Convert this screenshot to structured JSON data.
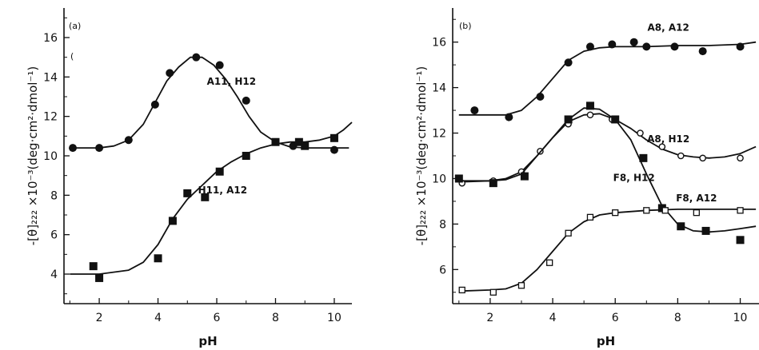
{
  "chart_data": [
    {
      "type": "scatter",
      "panel_label": "(a)",
      "xlabel": "pH",
      "ylabel": "-[θ]₂₂₂ ×10⁻³(deg·cm²·dmol⁻¹)",
      "xlim": [
        0.8,
        10.6
      ],
      "ylim": [
        2.5,
        17.5
      ],
      "xticks": [
        2,
        4,
        6,
        8,
        10
      ],
      "yticks": [
        4,
        6,
        8,
        10,
        12,
        14,
        16
      ],
      "grid": false,
      "stray_mark": "(",
      "series": [
        {
          "name": "A11, H12",
          "marker": "filled-circle",
          "x": [
            1.1,
            2.0,
            3.0,
            3.9,
            4.4,
            5.3,
            6.1,
            7.0,
            8.6,
            10.0
          ],
          "y": [
            10.4,
            10.4,
            10.8,
            12.6,
            14.2,
            15.0,
            14.6,
            12.8,
            10.5,
            10.3
          ],
          "curve": [
            [
              1.0,
              10.4
            ],
            [
              1.5,
              10.4
            ],
            [
              2.0,
              10.4
            ],
            [
              2.5,
              10.5
            ],
            [
              3.0,
              10.8
            ],
            [
              3.5,
              11.6
            ],
            [
              3.9,
              12.7
            ],
            [
              4.3,
              13.8
            ],
            [
              4.7,
              14.5
            ],
            [
              5.1,
              15.0
            ],
            [
              5.5,
              15.0
            ],
            [
              5.9,
              14.6
            ],
            [
              6.3,
              13.9
            ],
            [
              6.7,
              13.0
            ],
            [
              7.1,
              12.0
            ],
            [
              7.5,
              11.2
            ],
            [
              8.0,
              10.7
            ],
            [
              8.5,
              10.45
            ],
            [
              9.0,
              10.4
            ],
            [
              10.0,
              10.4
            ],
            [
              10.5,
              10.4
            ]
          ]
        },
        {
          "name": "H11, A12",
          "marker": "filled-square",
          "x": [
            1.8,
            2.0,
            4.0,
            4.5,
            5.0,
            5.6,
            6.1,
            7.0,
            8.0,
            8.8,
            9.0,
            10.0
          ],
          "y": [
            4.4,
            3.8,
            4.8,
            6.7,
            8.1,
            7.9,
            9.2,
            10.0,
            10.7,
            10.7,
            10.5,
            10.9
          ],
          "curve": [
            [
              1.0,
              4.0
            ],
            [
              2.0,
              4.0
            ],
            [
              3.0,
              4.2
            ],
            [
              3.5,
              4.6
            ],
            [
              4.0,
              5.5
            ],
            [
              4.5,
              6.8
            ],
            [
              5.0,
              7.8
            ],
            [
              5.5,
              8.5
            ],
            [
              6.0,
              9.2
            ],
            [
              6.5,
              9.7
            ],
            [
              7.0,
              10.1
            ],
            [
              7.5,
              10.4
            ],
            [
              8.0,
              10.6
            ],
            [
              8.5,
              10.7
            ],
            [
              9.0,
              10.7
            ],
            [
              9.5,
              10.8
            ],
            [
              10.0,
              11.0
            ],
            [
              10.3,
              11.3
            ],
            [
              10.6,
              11.7
            ]
          ]
        }
      ],
      "annotations": [
        {
          "text": "A11, H12",
          "x": 6.5,
          "y": 13.6
        },
        {
          "text": "H11, A12",
          "x": 6.2,
          "y": 8.1
        }
      ]
    },
    {
      "type": "scatter",
      "panel_label": "(b)",
      "xlabel": "pH",
      "ylabel": "-[θ]₂₂₂ ×10⁻³(deg·cm²·dmol⁻¹)",
      "xlim": [
        0.8,
        10.6
      ],
      "ylim": [
        4.5,
        17.5
      ],
      "xticks": [
        2,
        4,
        6,
        8,
        10
      ],
      "yticks": [
        6,
        8,
        10,
        12,
        14,
        16
      ],
      "grid": false,
      "series": [
        {
          "name": "A8, A12",
          "marker": "filled-circle",
          "x": [
            1.5,
            2.6,
            3.6,
            4.5,
            5.2,
            5.9,
            6.6,
            7.0,
            7.9,
            8.8,
            10.0
          ],
          "y": [
            13.0,
            12.7,
            13.6,
            15.1,
            15.8,
            15.9,
            16.0,
            15.8,
            15.8,
            15.6,
            15.8
          ],
          "curve": [
            [
              1.0,
              12.8
            ],
            [
              2.0,
              12.8
            ],
            [
              2.5,
              12.8
            ],
            [
              3.0,
              13.0
            ],
            [
              3.5,
              13.6
            ],
            [
              4.0,
              14.4
            ],
            [
              4.5,
              15.2
            ],
            [
              5.0,
              15.6
            ],
            [
              5.5,
              15.75
            ],
            [
              6.0,
              15.8
            ],
            [
              7.0,
              15.8
            ],
            [
              8.0,
              15.85
            ],
            [
              9.0,
              15.85
            ],
            [
              10.0,
              15.9
            ],
            [
              10.5,
              16.0
            ]
          ]
        },
        {
          "name": "A8, H12",
          "marker": "open-circle",
          "x": [
            1.1,
            2.1,
            3.0,
            3.6,
            4.5,
            5.2,
            5.9,
            6.8,
            7.5,
            8.1,
            8.8,
            10.0
          ],
          "y": [
            9.8,
            9.9,
            10.3,
            11.2,
            12.4,
            12.8,
            12.6,
            12.0,
            11.4,
            11.0,
            10.9,
            10.9
          ],
          "curve": [
            [
              1.0,
              9.85
            ],
            [
              2.0,
              9.9
            ],
            [
              2.5,
              10.0
            ],
            [
              3.0,
              10.3
            ],
            [
              3.5,
              11.0
            ],
            [
              4.0,
              11.8
            ],
            [
              4.5,
              12.5
            ],
            [
              5.0,
              12.8
            ],
            [
              5.5,
              12.85
            ],
            [
              6.0,
              12.6
            ],
            [
              6.5,
              12.2
            ],
            [
              7.0,
              11.7
            ],
            [
              7.5,
              11.3
            ],
            [
              8.0,
              11.05
            ],
            [
              8.5,
              10.95
            ],
            [
              9.0,
              10.9
            ],
            [
              9.5,
              10.95
            ],
            [
              10.0,
              11.1
            ],
            [
              10.5,
              11.4
            ]
          ]
        },
        {
          "name": "F8, H12",
          "marker": "filled-square",
          "x": [
            1.0,
            2.1,
            3.1,
            4.5,
            5.2,
            6.0,
            6.9,
            7.5,
            8.1,
            8.9,
            10.0
          ],
          "y": [
            10.0,
            9.8,
            10.1,
            12.6,
            13.2,
            12.6,
            10.9,
            8.7,
            7.9,
            7.7,
            7.3
          ],
          "curve": [
            [
              1.0,
              9.9
            ],
            [
              2.0,
              9.9
            ],
            [
              2.5,
              9.95
            ],
            [
              3.0,
              10.2
            ],
            [
              3.5,
              11.0
            ],
            [
              4.0,
              11.8
            ],
            [
              4.5,
              12.6
            ],
            [
              5.0,
              13.1
            ],
            [
              5.5,
              13.05
            ],
            [
              6.0,
              12.6
            ],
            [
              6.5,
              11.7
            ],
            [
              7.0,
              10.2
            ],
            [
              7.5,
              8.8
            ],
            [
              8.0,
              8.0
            ],
            [
              8.5,
              7.7
            ],
            [
              9.0,
              7.65
            ],
            [
              9.5,
              7.7
            ],
            [
              10.0,
              7.8
            ],
            [
              10.5,
              7.9
            ]
          ]
        },
        {
          "name": "F8, A12",
          "marker": "open-square",
          "x": [
            1.1,
            2.1,
            3.0,
            3.9,
            4.5,
            5.2,
            6.0,
            7.0,
            7.6,
            8.6,
            10.0
          ],
          "y": [
            5.1,
            5.0,
            5.3,
            6.3,
            7.6,
            8.3,
            8.5,
            8.6,
            8.6,
            8.5,
            8.6
          ],
          "curve": [
            [
              1.0,
              5.05
            ],
            [
              2.0,
              5.1
            ],
            [
              2.5,
              5.15
            ],
            [
              3.0,
              5.4
            ],
            [
              3.5,
              6.0
            ],
            [
              4.0,
              6.8
            ],
            [
              4.5,
              7.6
            ],
            [
              5.0,
              8.1
            ],
            [
              5.5,
              8.4
            ],
            [
              6.0,
              8.5
            ],
            [
              7.0,
              8.6
            ],
            [
              8.0,
              8.65
            ],
            [
              9.0,
              8.65
            ],
            [
              10.0,
              8.65
            ],
            [
              10.5,
              8.65
            ]
          ]
        }
      ],
      "annotations": [
        {
          "text": "A8, A12",
          "x": 7.7,
          "y": 16.5
        },
        {
          "text": "A8, H12",
          "x": 7.7,
          "y": 11.6
        },
        {
          "text": "F8, H12",
          "x": 6.6,
          "y": 9.9
        },
        {
          "text": "F8, A12",
          "x": 8.6,
          "y": 9.0
        }
      ]
    }
  ]
}
